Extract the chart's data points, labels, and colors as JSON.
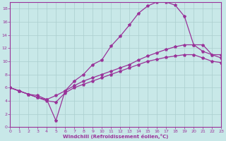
{
  "xlabel": "Windchill (Refroidissement éolien,°C)",
  "background_color": "#c8e8e8",
  "grid_color": "#aacece",
  "line_color": "#993399",
  "xlim": [
    0,
    23
  ],
  "ylim": [
    0,
    19
  ],
  "xticks": [
    0,
    1,
    2,
    3,
    4,
    5,
    6,
    7,
    8,
    9,
    10,
    11,
    12,
    13,
    14,
    15,
    16,
    17,
    18,
    19,
    20,
    21,
    22,
    23
  ],
  "yticks": [
    0,
    2,
    4,
    6,
    8,
    10,
    12,
    14,
    16,
    18
  ],
  "line1_x": [
    0,
    1,
    2,
    3,
    4,
    5,
    6,
    7,
    8,
    9,
    10,
    11,
    12,
    13,
    14,
    15,
    16,
    17,
    18,
    19,
    20,
    21,
    22,
    23
  ],
  "line1_y": [
    6.0,
    5.5,
    5.0,
    4.5,
    4.2,
    1.0,
    5.5,
    7.0,
    8.0,
    9.5,
    10.2,
    12.3,
    13.8,
    15.5,
    17.3,
    18.4,
    19.0,
    19.0,
    18.5,
    16.8,
    12.5,
    12.5,
    11.0,
    11.0
  ],
  "line2_x": [
    0,
    1,
    2,
    3,
    4,
    5,
    6,
    7,
    8,
    9,
    10,
    11,
    12,
    13,
    14,
    15,
    16,
    17,
    18,
    19,
    20,
    21,
    22,
    23
  ],
  "line2_y": [
    6.0,
    5.5,
    5.0,
    4.8,
    4.2,
    4.8,
    5.5,
    6.3,
    7.0,
    7.5,
    8.0,
    8.5,
    9.0,
    9.5,
    10.2,
    10.8,
    11.3,
    11.8,
    12.2,
    12.5,
    12.5,
    11.5,
    11.0,
    10.5
  ],
  "line3_x": [
    0,
    1,
    2,
    3,
    4,
    5,
    6,
    7,
    8,
    9,
    10,
    11,
    12,
    13,
    14,
    15,
    16,
    17,
    18,
    19,
    20,
    21,
    22,
    23
  ],
  "line3_y": [
    6.0,
    5.5,
    5.0,
    4.5,
    4.0,
    3.8,
    5.2,
    6.0,
    6.5,
    7.0,
    7.5,
    8.0,
    8.5,
    9.0,
    9.5,
    10.0,
    10.3,
    10.6,
    10.8,
    11.0,
    11.0,
    10.5,
    10.0,
    9.8
  ]
}
